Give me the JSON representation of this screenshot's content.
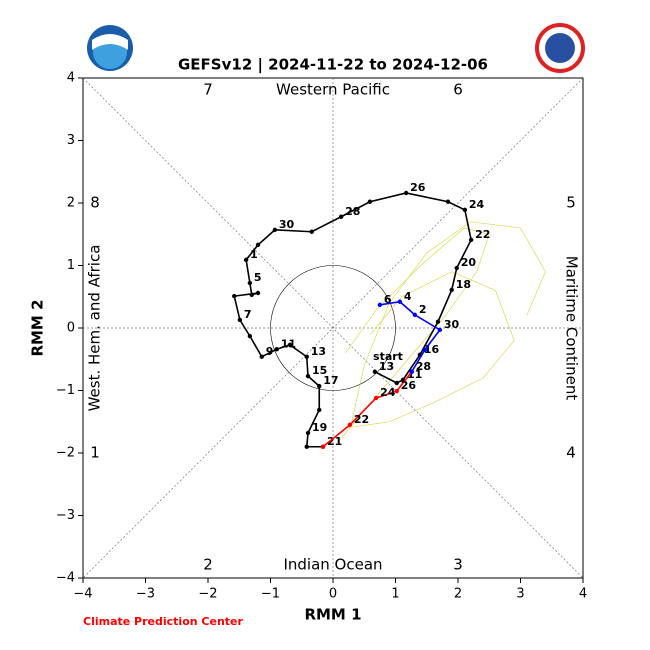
{
  "chart_data": {
    "type": "line",
    "title": "GEFSv12 | 2024-11-22 to 2024-12-06",
    "x_label": "RMM 1",
    "y_label": "RMM 2",
    "credit": "Climate Prediction Center",
    "start_label": "start",
    "xlim": [
      -4,
      4
    ],
    "ylim": [
      -4,
      4
    ],
    "xticks": [
      {
        "value": -4,
        "label": "−4"
      },
      {
        "value": -3,
        "label": "−3"
      },
      {
        "value": -2,
        "label": "−2"
      },
      {
        "value": -1,
        "label": "−1"
      },
      0,
      1,
      2,
      3,
      4
    ],
    "yticks": [
      {
        "value": -4,
        "label": "−4"
      },
      {
        "value": -3,
        "label": "−3"
      },
      {
        "value": -2,
        "label": "−2"
      },
      {
        "value": -1,
        "label": "−1"
      },
      0,
      1,
      2,
      3,
      4
    ],
    "phase_labels": [
      "1",
      "2",
      "3",
      "4",
      "5",
      "6",
      "7",
      "8"
    ],
    "region_labels": [
      "Western Pacific",
      "Indian Ocean",
      "West. Hem. and Africa",
      "Maritime Continent"
    ],
    "series": [
      {
        "color": "#d4d43a",
        "x": [
          0.1,
          0.6,
          1.2,
          1.8,
          2.3,
          2.5,
          2.1,
          1.4,
          0.7,
          0.2
        ],
        "y": [
          -1.8,
          -1.2,
          -0.5,
          0.2,
          0.9,
          1.5,
          1.6,
          1.0,
          0.3,
          -0.4
        ],
        "point_labels": [
          null,
          null,
          null,
          null,
          null,
          null,
          null,
          null,
          null,
          null
        ]
      },
      {
        "color": "#d4d43a",
        "x": [
          0.2,
          0.9,
          1.6,
          2.4,
          2.9,
          2.6,
          1.9,
          1.1,
          0.6
        ],
        "y": [
          -1.6,
          -1.5,
          -1.2,
          -0.8,
          -0.2,
          0.6,
          0.9,
          0.5,
          -0.1
        ],
        "point_labels": [
          null,
          null,
          null,
          null,
          null,
          null,
          null,
          null,
          null
        ]
      },
      {
        "color": "#d4d43a",
        "x": [
          0.3,
          0.5,
          0.9,
          1.5,
          2.2,
          3.0,
          3.4,
          3.1
        ],
        "y": [
          -1.5,
          -0.6,
          0.4,
          1.2,
          1.7,
          1.6,
          0.9,
          0.2
        ],
        "point_labels": [
          null,
          null,
          null,
          null,
          null,
          null,
          null,
          null
        ]
      },
      {
        "color": "#000000",
        "x": [
          0.67,
          1.02,
          1.12,
          1.39,
          1.68,
          1.9,
          1.98,
          2.21,
          2.11,
          1.84,
          1.17,
          0.59,
          0.13,
          -0.34,
          -0.93,
          -1.2,
          -1.39,
          -1.33,
          -1.3,
          -1.2,
          -1.58,
          -1.49,
          -1.33,
          -1.14,
          -0.9,
          -0.69,
          -0.42,
          -0.4,
          -0.22,
          -0.22,
          -0.4,
          -0.42,
          -0.16
        ],
        "y": [
          -0.7,
          -0.88,
          -0.83,
          -0.43,
          0.1,
          0.61,
          0.96,
          1.41,
          1.89,
          2.02,
          2.16,
          2.02,
          1.78,
          1.54,
          1.57,
          1.33,
          1.09,
          0.72,
          0.53,
          0.56,
          0.51,
          0.13,
          -0.13,
          -0.46,
          -0.34,
          -0.27,
          -0.46,
          -0.77,
          -0.93,
          -1.31,
          -1.68,
          -1.9,
          -1.9
        ],
        "point_labels": [
          "13",
          null,
          "11",
          "16",
          null,
          "18",
          "20",
          "22",
          "24",
          null,
          "26",
          null,
          "28",
          null,
          "30",
          null,
          "1",
          "5",
          null,
          null,
          null,
          "7",
          null,
          "9",
          "11",
          null,
          "13",
          "15",
          "17",
          null,
          "19",
          null,
          "21"
        ]
      },
      {
        "color": "#ff0000",
        "x": [
          -0.16,
          0.27,
          0.69,
          1.02,
          1.26
        ],
        "y": [
          -1.9,
          -1.55,
          -1.12,
          -1.01,
          -0.7
        ],
        "point_labels": [
          null,
          "22",
          "24",
          "26",
          "28"
        ]
      },
      {
        "color": "#0000ff",
        "x": [
          1.26,
          1.47,
          1.71,
          1.31,
          1.07,
          0.75
        ],
        "y": [
          -0.7,
          -0.35,
          -0.03,
          0.21,
          0.42,
          0.37
        ],
        "point_labels": [
          null,
          null,
          "30",
          "2",
          "4",
          "6"
        ]
      }
    ]
  }
}
